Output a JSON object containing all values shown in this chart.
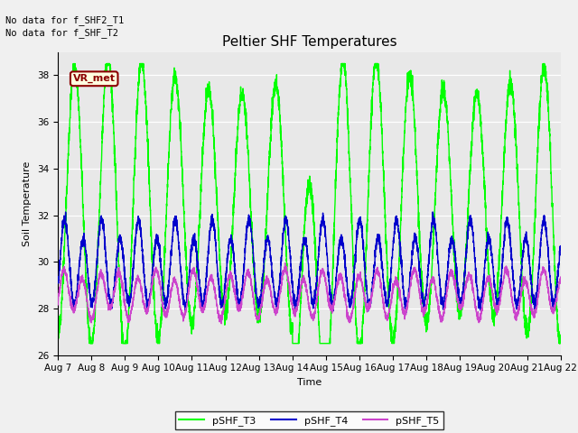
{
  "title": "Peltier SHF Temperatures",
  "xlabel": "Time",
  "ylabel": "Soil Temperature",
  "ylim": [
    26,
    39
  ],
  "xlim_start": 0,
  "xlim_end": 15,
  "x_tick_labels": [
    "Aug 7",
    "Aug 8",
    "Aug 9",
    "Aug 10",
    "Aug 11",
    "Aug 12",
    "Aug 13",
    "Aug 14",
    "Aug 15",
    "Aug 16",
    "Aug 17",
    "Aug 18",
    "Aug 19",
    "Aug 20",
    "Aug 21",
    "Aug 22"
  ],
  "yticks": [
    26,
    28,
    30,
    32,
    34,
    36,
    38
  ],
  "bg_color": "#e8e8e8",
  "fig_bg_color": "#f0f0f0",
  "line_colors": {
    "T3": "#00ff00",
    "T4": "#0000cc",
    "T5": "#cc44cc"
  },
  "legend_labels": [
    "pSHF_T3",
    "pSHF_T4",
    "pSHF_T5"
  ],
  "top_text1": "No data for f_SHF2_T1",
  "top_text2": "No data for f_SHF_T2",
  "vr_met_label": "VR_met",
  "title_fontsize": 11,
  "axis_fontsize": 8,
  "tick_fontsize": 7.5,
  "legend_fontsize": 8
}
